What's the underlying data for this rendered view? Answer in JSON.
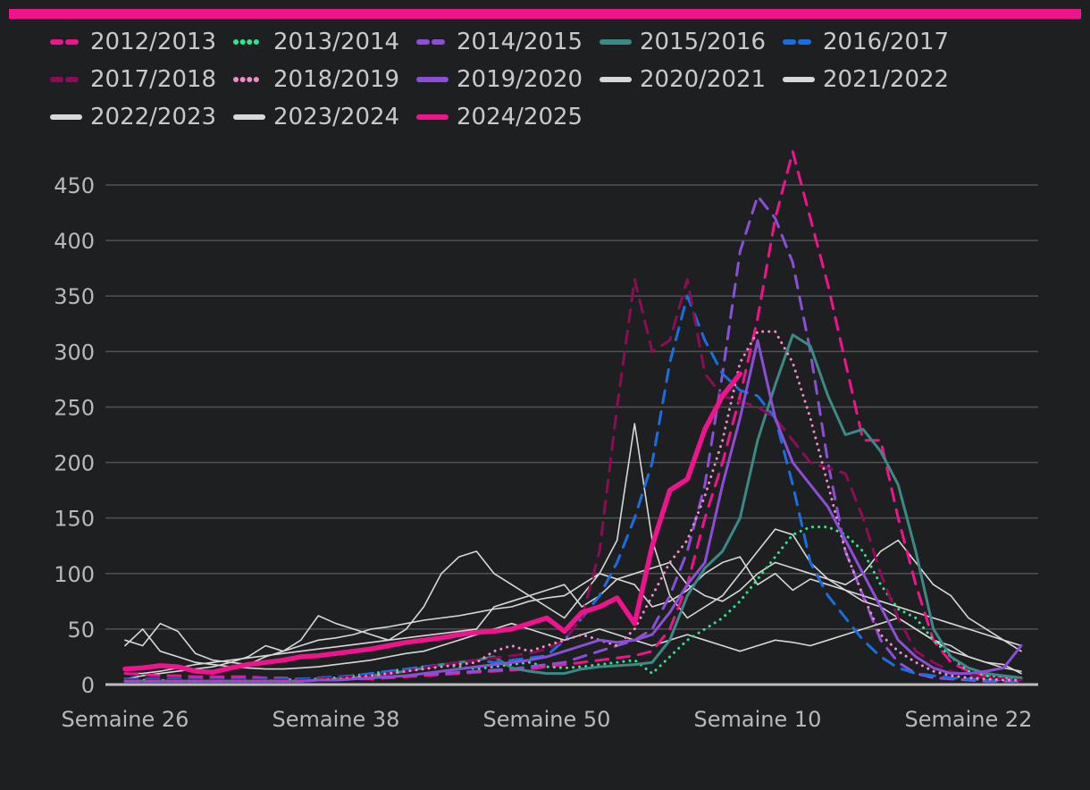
{
  "accent_color": "#f0148c",
  "chart_data": {
    "type": "line",
    "x_tick_labels": [
      "Semaine 26",
      "Semaine 38",
      "Semaine 50",
      "Semaine 10",
      "Semaine 22"
    ],
    "ylim": [
      0,
      450
    ],
    "y_ticks": [
      0,
      50,
      100,
      150,
      200,
      250,
      300,
      350,
      400,
      450
    ],
    "grid": true,
    "legend_position": "top",
    "x_start_week": 26,
    "weeks_count": 52,
    "series": [
      {
        "name": "2012/2013",
        "color": "#f0148c",
        "style": "dashed",
        "values": [
          10,
          9,
          8,
          8,
          7,
          7,
          7,
          7,
          6,
          6,
          5,
          5,
          5,
          5,
          5,
          6,
          7,
          8,
          9,
          10,
          11,
          12,
          13,
          14,
          16,
          18,
          20,
          22,
          24,
          26,
          30,
          50,
          90,
          150,
          200,
          260,
          330,
          420,
          480,
          420,
          360,
          290,
          220,
          220,
          150,
          90,
          40,
          20,
          12,
          8,
          6,
          5
        ]
      },
      {
        "name": "2013/2014",
        "color": "#2ee88e",
        "style": "dotted",
        "values": [
          5,
          4,
          4,
          3,
          3,
          3,
          3,
          3,
          3,
          4,
          5,
          5,
          6,
          8,
          10,
          12,
          14,
          16,
          18,
          16,
          14,
          16,
          18,
          20,
          16,
          15,
          16,
          18,
          20,
          22,
          10,
          25,
          40,
          50,
          60,
          75,
          95,
          115,
          135,
          142,
          142,
          135,
          120,
          90,
          68,
          60,
          40,
          25,
          12,
          8,
          6,
          5
        ]
      },
      {
        "name": "2014/2015",
        "color": "#8b4fd6",
        "style": "dashed",
        "values": [
          3,
          3,
          3,
          3,
          3,
          3,
          3,
          3,
          3,
          3,
          3,
          4,
          4,
          5,
          6,
          7,
          8,
          9,
          10,
          11,
          12,
          13,
          14,
          16,
          18,
          20,
          25,
          30,
          35,
          40,
          50,
          80,
          120,
          180,
          280,
          390,
          440,
          420,
          380,
          300,
          200,
          120,
          80,
          40,
          20,
          10,
          6,
          5,
          4,
          3,
          3,
          3
        ]
      },
      {
        "name": "2015/2016",
        "color": "#3b8a86",
        "style": "solid",
        "values": [
          3,
          3,
          3,
          3,
          3,
          3,
          3,
          3,
          3,
          3,
          3,
          4,
          5,
          6,
          8,
          10,
          12,
          15,
          18,
          20,
          22,
          25,
          15,
          12,
          10,
          10,
          14,
          16,
          17,
          18,
          20,
          40,
          80,
          105,
          120,
          150,
          220,
          270,
          315,
          305,
          260,
          225,
          230,
          210,
          180,
          120,
          50,
          25,
          15,
          10,
          8,
          6
        ]
      },
      {
        "name": "2016/2017",
        "color": "#1a6fe0",
        "style": "dashed",
        "values": [
          5,
          5,
          5,
          5,
          5,
          5,
          5,
          5,
          5,
          5,
          5,
          6,
          7,
          8,
          10,
          12,
          14,
          16,
          18,
          20,
          22,
          20,
          22,
          24,
          26,
          40,
          60,
          80,
          110,
          150,
          200,
          290,
          350,
          310,
          280,
          265,
          260,
          240,
          180,
          110,
          80,
          60,
          40,
          25,
          15,
          10,
          8,
          6,
          5,
          4,
          4,
          4
        ]
      },
      {
        "name": "2017/2018",
        "color": "#8c0d56",
        "style": "dashed",
        "values": [
          4,
          4,
          4,
          4,
          4,
          4,
          4,
          4,
          4,
          4,
          4,
          5,
          6,
          7,
          8,
          10,
          12,
          15,
          18,
          20,
          22,
          24,
          26,
          28,
          32,
          40,
          60,
          120,
          250,
          365,
          300,
          310,
          365,
          280,
          260,
          255,
          250,
          240,
          220,
          200,
          195,
          190,
          150,
          100,
          60,
          30,
          20,
          12,
          8,
          6,
          5,
          4
        ]
      },
      {
        "name": "2018/2019",
        "color": "#f08cc8",
        "style": "dotted",
        "values": [
          3,
          3,
          3,
          3,
          3,
          3,
          3,
          3,
          3,
          3,
          3,
          4,
          5,
          6,
          8,
          10,
          12,
          14,
          16,
          18,
          20,
          30,
          35,
          30,
          35,
          40,
          45,
          40,
          35,
          50,
          80,
          110,
          130,
          170,
          220,
          290,
          318,
          318,
          290,
          240,
          180,
          120,
          80,
          45,
          30,
          20,
          12,
          8,
          6,
          5,
          4,
          4
        ]
      },
      {
        "name": "2019/2020",
        "color": "#8b4fd6",
        "style": "solid",
        "values": [
          3,
          3,
          3,
          3,
          3,
          3,
          3,
          3,
          3,
          3,
          3,
          4,
          4,
          5,
          6,
          7,
          8,
          10,
          12,
          14,
          16,
          18,
          20,
          22,
          25,
          30,
          35,
          40,
          38,
          40,
          45,
          65,
          90,
          110,
          180,
          240,
          310,
          240,
          200,
          180,
          160,
          130,
          100,
          70,
          40,
          25,
          15,
          10,
          10,
          12,
          15,
          35
        ]
      },
      {
        "name": "2020/2021",
        "color": "#d8d8d8",
        "style": "solid",
        "values": [
          35,
          50,
          30,
          25,
          20,
          18,
          16,
          15,
          14,
          14,
          15,
          16,
          18,
          20,
          22,
          25,
          28,
          30,
          35,
          40,
          45,
          50,
          55,
          50,
          45,
          40,
          45,
          50,
          45,
          40,
          35,
          40,
          45,
          40,
          35,
          30,
          35,
          40,
          38,
          35,
          40,
          45,
          50,
          55,
          60,
          50,
          40,
          30,
          25,
          20,
          15,
          12
        ]
      },
      {
        "name": "2021/2022",
        "color": "#d8d8d8",
        "style": "solid",
        "values": [
          40,
          35,
          55,
          48,
          28,
          22,
          20,
          18,
          25,
          30,
          40,
          62,
          55,
          50,
          45,
          40,
          50,
          70,
          100,
          115,
          120,
          100,
          90,
          80,
          70,
          60,
          80,
          100,
          95,
          90,
          70,
          75,
          85,
          100,
          110,
          115,
          90,
          100,
          85,
          95,
          90,
          85,
          75,
          70,
          60,
          50,
          40,
          35,
          25,
          20,
          18,
          10
        ]
      },
      {
        "name": "2022/2023",
        "color": "#d8d8d8",
        "style": "solid",
        "values": [
          5,
          8,
          10,
          12,
          14,
          16,
          20,
          25,
          35,
          30,
          35,
          40,
          42,
          45,
          50,
          52,
          55,
          58,
          60,
          62,
          65,
          68,
          70,
          75,
          78,
          80,
          90,
          100,
          130,
          235,
          130,
          80,
          60,
          70,
          80,
          100,
          120,
          140,
          135,
          110,
          95,
          85,
          80,
          75,
          70,
          65,
          60,
          55,
          50,
          45,
          40,
          35
        ]
      },
      {
        "name": "2023/2024",
        "color": "#d8d8d8",
        "style": "solid",
        "values": [
          10,
          10,
          12,
          15,
          18,
          20,
          22,
          24,
          26,
          28,
          30,
          32,
          34,
          36,
          38,
          40,
          42,
          44,
          46,
          48,
          50,
          70,
          75,
          80,
          85,
          90,
          70,
          80,
          95,
          100,
          105,
          110,
          90,
          80,
          75,
          85,
          100,
          110,
          105,
          100,
          95,
          90,
          100,
          120,
          130,
          110,
          90,
          80,
          60,
          50,
          40,
          30
        ]
      },
      {
        "name": "2024/2025",
        "color": "#f0148c",
        "style": "solid",
        "thick": true,
        "values": [
          14,
          15,
          17,
          16,
          12,
          11,
          15,
          18,
          20,
          22,
          25,
          26,
          28,
          30,
          32,
          35,
          38,
          40,
          42,
          45,
          47,
          48,
          50,
          55,
          60,
          48,
          65,
          70,
          78,
          55,
          125,
          175,
          185,
          230,
          260,
          280
        ]
      }
    ]
  }
}
